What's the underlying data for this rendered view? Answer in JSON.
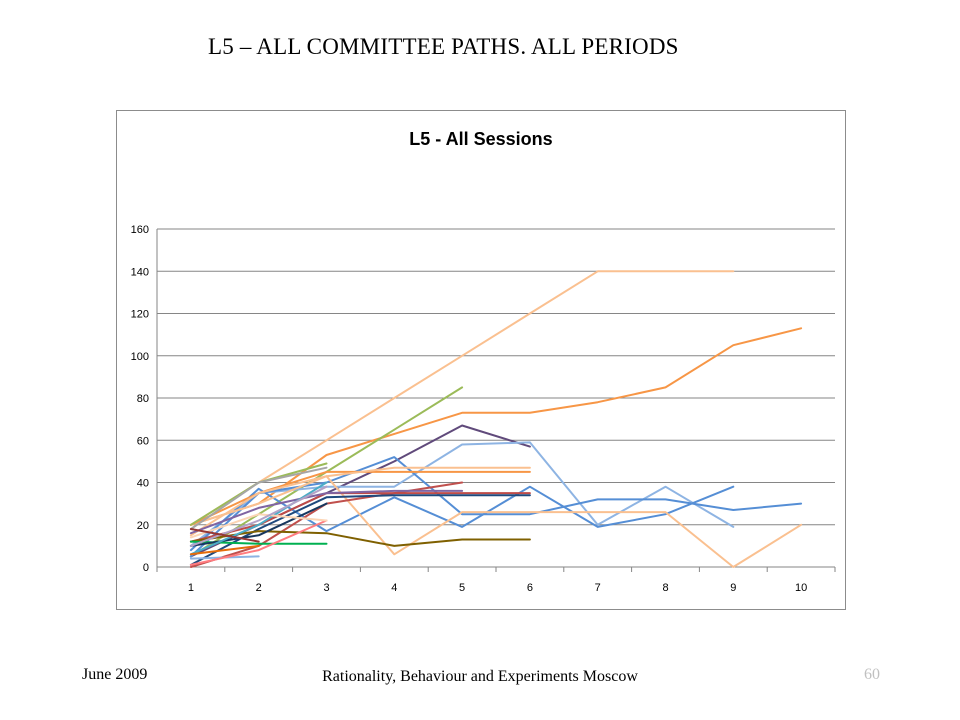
{
  "slide": {
    "title": "L5 – ALL COMMITTEE PATHS. ALL PERIODS",
    "footer_left": "June 2009",
    "footer_center": "Rationality, Behaviour and Experiments Moscow",
    "page_number": "60"
  },
  "chart_data": {
    "type": "line",
    "title": "L5 - All Sessions",
    "xlabel": "",
    "ylabel": "",
    "categories": [
      "1",
      "2",
      "3",
      "4",
      "5",
      "6",
      "7",
      "8",
      "9",
      "10"
    ],
    "ylim": [
      0,
      160
    ],
    "yticks": [
      0,
      20,
      40,
      60,
      80,
      100,
      120,
      140,
      160
    ],
    "grid": true,
    "legend": "none",
    "series": [
      {
        "color": "#fac090",
        "values": [
          20,
          40,
          60,
          80,
          100,
          120,
          140,
          140,
          140,
          null
        ]
      },
      {
        "color": "#f79646",
        "values": [
          20,
          30,
          53,
          63,
          73,
          73,
          78,
          85,
          105,
          113
        ]
      },
      {
        "color": "#9bbb59",
        "values": [
          5,
          25,
          45,
          65,
          85,
          null,
          null,
          null,
          null,
          null
        ]
      },
      {
        "color": "#604a7b",
        "values": [
          5,
          20,
          35,
          50,
          67,
          57,
          null,
          null,
          null,
          null
        ]
      },
      {
        "color": "#8eb4e3",
        "values": [
          10,
          35,
          38,
          38,
          58,
          59,
          20,
          38,
          19,
          null
        ]
      },
      {
        "color": "#558ed5",
        "values": [
          8,
          37,
          17,
          33,
          19,
          38,
          19,
          25,
          38,
          null
        ]
      },
      {
        "color": "#558ed5",
        "values": [
          5,
          35,
          40,
          52,
          25,
          25,
          32,
          32,
          27,
          30
        ]
      },
      {
        "color": "#fac090",
        "values": [
          20,
          30,
          43,
          6,
          26,
          26,
          26,
          26,
          0,
          20
        ]
      },
      {
        "color": "#f79646",
        "values": [
          20,
          35,
          45,
          45,
          45,
          45,
          null,
          null,
          null,
          null
        ]
      },
      {
        "color": "#fac090",
        "values": [
          15,
          35,
          43,
          47,
          47,
          47,
          null,
          null,
          null,
          null
        ]
      },
      {
        "color": "#c0504d",
        "values": [
          0,
          10,
          30,
          35,
          40,
          null,
          null,
          null,
          null,
          null
        ]
      },
      {
        "color": "#be4b48",
        "values": [
          12,
          20,
          35,
          35,
          35,
          35,
          null,
          null,
          null,
          null
        ]
      },
      {
        "color": "#1f497d",
        "values": [
          1,
          18,
          33,
          34,
          34,
          34,
          null,
          null,
          null,
          null
        ]
      },
      {
        "color": "#8064a2",
        "values": [
          16,
          28,
          35,
          36,
          36,
          null,
          null,
          null,
          null,
          null
        ]
      },
      {
        "color": "#7f6000",
        "values": [
          12,
          17,
          16,
          10,
          13,
          13,
          null,
          null,
          null,
          null
        ]
      },
      {
        "color": "#00b050",
        "values": [
          12,
          11,
          11,
          null,
          null,
          null,
          null,
          null,
          null,
          null
        ]
      },
      {
        "color": "#8db3e2",
        "values": [
          4,
          5,
          null,
          null,
          null,
          null,
          null,
          null,
          null,
          null
        ]
      },
      {
        "color": "#9bbb59",
        "values": [
          20,
          40,
          49,
          null,
          null,
          null,
          null,
          null,
          null,
          null
        ]
      },
      {
        "color": "#a6a6a6",
        "values": [
          18,
          40,
          47,
          null,
          null,
          null,
          null,
          null,
          null,
          null
        ]
      },
      {
        "color": "#17375e",
        "values": [
          10,
          15,
          30,
          null,
          null,
          null,
          null,
          null,
          null,
          null
        ]
      },
      {
        "color": "#ff7c80",
        "values": [
          1,
          8,
          22,
          null,
          null,
          null,
          null,
          null,
          null,
          null
        ]
      },
      {
        "color": "#4bacc6",
        "values": [
          6,
          20,
          40,
          null,
          null,
          null,
          null,
          null,
          null,
          null
        ]
      },
      {
        "color": "#e46c0a",
        "values": [
          6,
          10,
          null,
          null,
          null,
          null,
          null,
          null,
          null,
          null
        ]
      },
      {
        "color": "#fcd5b5",
        "values": [
          14,
          25,
          22,
          null,
          null,
          null,
          null,
          null,
          null,
          null
        ]
      },
      {
        "color": "#b3a2c7",
        "values": [
          10,
          22,
          38,
          null,
          null,
          null,
          null,
          null,
          null,
          null
        ]
      },
      {
        "color": "#953735",
        "values": [
          18,
          12,
          null,
          null,
          null,
          null,
          null,
          null,
          null,
          null
        ]
      }
    ]
  }
}
